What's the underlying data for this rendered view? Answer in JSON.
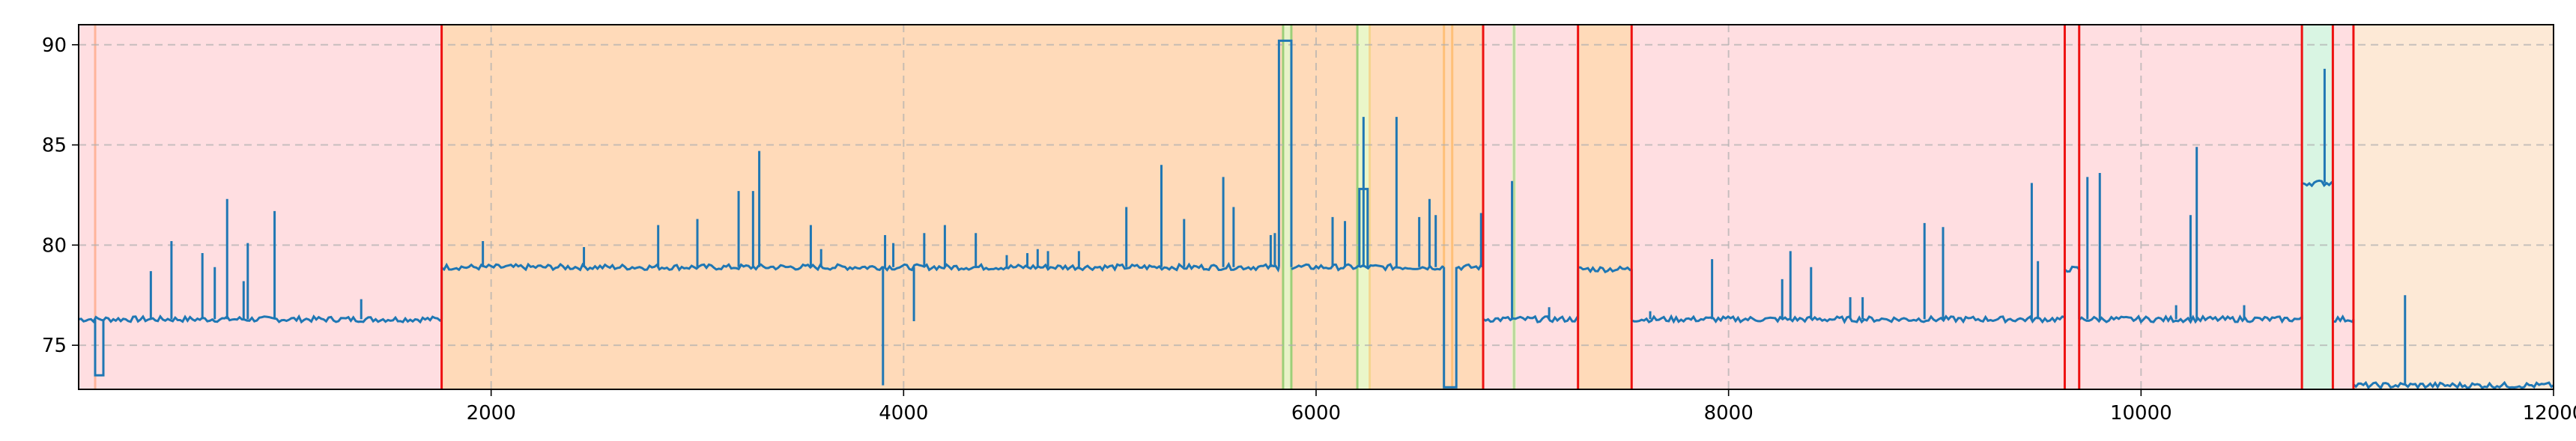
{
  "chart_data": {
    "type": "line",
    "title": "",
    "xlabel": "",
    "ylabel": "",
    "xlim": [
      0,
      12000
    ],
    "ylim": [
      72.8,
      91
    ],
    "xticks": [
      2000,
      4000,
      6000,
      8000,
      10000,
      12000
    ],
    "yticks": [
      75,
      80,
      85,
      90
    ],
    "grid": true,
    "series_color": "#1f77b4",
    "segments": [
      {
        "x_start": 0,
        "x_end": 1760,
        "color": "#ffdee1"
      },
      {
        "x_start": 1760,
        "x_end": 5840,
        "color": "#ffdab9"
      },
      {
        "x_start": 5840,
        "x_end": 5880,
        "color": "#e8f2c8"
      },
      {
        "x_start": 5880,
        "x_end": 6200,
        "color": "#ffdab9"
      },
      {
        "x_start": 6200,
        "x_end": 6260,
        "color": "#eaf6c9"
      },
      {
        "x_start": 6260,
        "x_end": 6810,
        "color": "#ffdab9"
      },
      {
        "x_start": 6810,
        "x_end": 6950,
        "color": "#ffdee1"
      },
      {
        "x_start": 6950,
        "x_end": 6970,
        "color": "#e8f0c8"
      },
      {
        "x_start": 6970,
        "x_end": 7270,
        "color": "#ffdee1"
      },
      {
        "x_start": 7270,
        "x_end": 7530,
        "color": "#ffdab9"
      },
      {
        "x_start": 7530,
        "x_end": 9630,
        "color": "#ffdee1"
      },
      {
        "x_start": 9630,
        "x_end": 9700,
        "color": "#ffdee1"
      },
      {
        "x_start": 9700,
        "x_end": 10780,
        "color": "#ffdee1"
      },
      {
        "x_start": 10780,
        "x_end": 10930,
        "color": "#d9f5e3"
      },
      {
        "x_start": 10930,
        "x_end": 11030,
        "color": "#ffdee1"
      },
      {
        "x_start": 11030,
        "x_end": 12000,
        "color": "#fde9d6"
      }
    ],
    "red_boundaries": [
      1760,
      6810,
      7270,
      7530,
      9630,
      9700,
      10780,
      10930,
      11030
    ],
    "thin_markers": [
      {
        "x": 80,
        "color": "#ffb49a"
      },
      {
        "x": 5840,
        "color": "#9ccf78"
      },
      {
        "x": 5880,
        "color": "#9ccf78"
      },
      {
        "x": 6200,
        "color": "#9ccf78"
      },
      {
        "x": 6260,
        "color": "#f4d58f"
      },
      {
        "x": 6620,
        "color": "#ffc078"
      },
      {
        "x": 6660,
        "color": "#ffc078"
      },
      {
        "x": 6960,
        "color": "#b9d79a"
      }
    ],
    "baseline_segments": [
      {
        "x_start": 0,
        "x_end": 1760,
        "y": 76.3
      },
      {
        "x_start": 1760,
        "x_end": 5820,
        "y": 78.9
      },
      {
        "x_start": 5880,
        "x_end": 6620,
        "y": 78.9
      },
      {
        "x_start": 6680,
        "x_end": 6810,
        "y": 78.9
      },
      {
        "x_start": 6810,
        "x_end": 7270,
        "y": 76.3
      },
      {
        "x_start": 7270,
        "x_end": 7530,
        "y": 78.8
      },
      {
        "x_start": 7530,
        "x_end": 9630,
        "y": 76.3
      },
      {
        "x_start": 9630,
        "x_end": 9700,
        "y": 78.8
      },
      {
        "x_start": 9700,
        "x_end": 10780,
        "y": 76.3
      },
      {
        "x_start": 10780,
        "x_end": 10930,
        "y": 83.1
      },
      {
        "x_start": 10930,
        "x_end": 11030,
        "y": 76.3
      },
      {
        "x_start": 11030,
        "x_end": 12000,
        "y": 73.0
      }
    ],
    "plateaus": [
      {
        "x_start": 5820,
        "x_end": 5880,
        "y": 90.2
      },
      {
        "x_start": 6210,
        "x_end": 6250,
        "y": 82.8
      },
      {
        "x_start": 6620,
        "x_end": 6680,
        "y": 72.9
      },
      {
        "x_start": 80,
        "x_end": 120,
        "y": 73.5
      }
    ],
    "spikes": [
      {
        "x": 350,
        "y": 78.7
      },
      {
        "x": 450,
        "y": 80.2
      },
      {
        "x": 600,
        "y": 79.6
      },
      {
        "x": 660,
        "y": 78.9
      },
      {
        "x": 720,
        "y": 82.3
      },
      {
        "x": 800,
        "y": 78.2
      },
      {
        "x": 820,
        "y": 80.1
      },
      {
        "x": 950,
        "y": 81.7
      },
      {
        "x": 1370,
        "y": 77.3
      },
      {
        "x": 1960,
        "y": 80.2
      },
      {
        "x": 2450,
        "y": 79.9
      },
      {
        "x": 2810,
        "y": 81.0
      },
      {
        "x": 3000,
        "y": 81.3
      },
      {
        "x": 3200,
        "y": 82.7
      },
      {
        "x": 3270,
        "y": 82.7
      },
      {
        "x": 3300,
        "y": 84.7
      },
      {
        "x": 3550,
        "y": 81.0
      },
      {
        "x": 3600,
        "y": 79.8
      },
      {
        "x": 3900,
        "y": 73.0
      },
      {
        "x": 3910,
        "y": 80.5
      },
      {
        "x": 3950,
        "y": 80.1
      },
      {
        "x": 4050,
        "y": 76.2
      },
      {
        "x": 4100,
        "y": 80.6
      },
      {
        "x": 4200,
        "y": 81.0
      },
      {
        "x": 4350,
        "y": 80.6
      },
      {
        "x": 4500,
        "y": 79.5
      },
      {
        "x": 4600,
        "y": 79.6
      },
      {
        "x": 4650,
        "y": 79.8
      },
      {
        "x": 4700,
        "y": 79.7
      },
      {
        "x": 4850,
        "y": 79.7
      },
      {
        "x": 5080,
        "y": 81.9
      },
      {
        "x": 5250,
        "y": 84.0
      },
      {
        "x": 5360,
        "y": 81.3
      },
      {
        "x": 5550,
        "y": 83.4
      },
      {
        "x": 5600,
        "y": 81.9
      },
      {
        "x": 5780,
        "y": 80.5
      },
      {
        "x": 5800,
        "y": 80.6
      },
      {
        "x": 6080,
        "y": 81.4
      },
      {
        "x": 6140,
        "y": 81.2
      },
      {
        "x": 6230,
        "y": 86.4
      },
      {
        "x": 6390,
        "y": 86.4
      },
      {
        "x": 6500,
        "y": 81.4
      },
      {
        "x": 6550,
        "y": 82.3
      },
      {
        "x": 6580,
        "y": 81.5
      },
      {
        "x": 6800,
        "y": 81.6
      },
      {
        "x": 6950,
        "y": 83.2
      },
      {
        "x": 7130,
        "y": 76.9
      },
      {
        "x": 7620,
        "y": 76.7
      },
      {
        "x": 7920,
        "y": 79.3
      },
      {
        "x": 8260,
        "y": 78.3
      },
      {
        "x": 8300,
        "y": 79.7
      },
      {
        "x": 8400,
        "y": 78.9
      },
      {
        "x": 8590,
        "y": 77.4
      },
      {
        "x": 8650,
        "y": 77.4
      },
      {
        "x": 8950,
        "y": 81.1
      },
      {
        "x": 9040,
        "y": 80.9
      },
      {
        "x": 9470,
        "y": 83.1
      },
      {
        "x": 9500,
        "y": 79.2
      },
      {
        "x": 9740,
        "y": 83.4
      },
      {
        "x": 9800,
        "y": 83.6
      },
      {
        "x": 10170,
        "y": 77.0
      },
      {
        "x": 10240,
        "y": 81.5
      },
      {
        "x": 10270,
        "y": 84.9
      },
      {
        "x": 10500,
        "y": 77.0
      },
      {
        "x": 10890,
        "y": 88.8
      },
      {
        "x": 11280,
        "y": 77.5
      }
    ]
  }
}
